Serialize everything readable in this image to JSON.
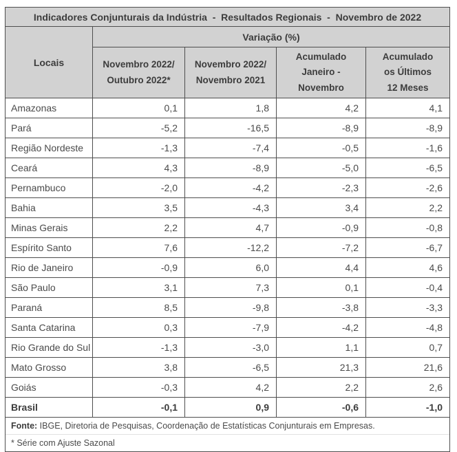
{
  "title": "Indicadores Conjunturais da Indústria  -  Resultados Regionais  -  Novembro de 2022",
  "table": {
    "locais_header": "Locais",
    "group_header": "Variação (%)",
    "columns": [
      [
        "Novembro 2022/",
        "Outubro 2022*"
      ],
      [
        "Novembro 2022/",
        "Novembro 2021"
      ],
      [
        "Acumulado",
        "Janeiro -",
        "Novembro"
      ],
      [
        "Acumulado",
        "os Últimos",
        "12 Meses"
      ]
    ],
    "rows": [
      {
        "local": "Amazonas",
        "values": [
          "0,1",
          "1,8",
          "4,2",
          "4,1"
        ],
        "bold": false
      },
      {
        "local": "Pará",
        "values": [
          "-5,2",
          "-16,5",
          "-8,9",
          "-8,9"
        ],
        "bold": false
      },
      {
        "local": "Região Nordeste",
        "values": [
          "-1,3",
          "-7,4",
          "-0,5",
          "-1,6"
        ],
        "bold": false
      },
      {
        "local": "Ceará",
        "values": [
          "4,3",
          "-8,9",
          "-5,0",
          "-6,5"
        ],
        "bold": false
      },
      {
        "local": "Pernambuco",
        "values": [
          "-2,0",
          "-4,2",
          "-2,3",
          "-2,6"
        ],
        "bold": false
      },
      {
        "local": "Bahia",
        "values": [
          "3,5",
          "-4,3",
          "3,4",
          "2,2"
        ],
        "bold": false
      },
      {
        "local": "Minas Gerais",
        "values": [
          "2,2",
          "4,7",
          "-0,9",
          "-0,8"
        ],
        "bold": false
      },
      {
        "local": "Espírito Santo",
        "values": [
          "7,6",
          "-12,2",
          "-7,2",
          "-6,7"
        ],
        "bold": false
      },
      {
        "local": "Rio de Janeiro",
        "values": [
          "-0,9",
          "6,0",
          "4,4",
          "4,6"
        ],
        "bold": false
      },
      {
        "local": "São Paulo",
        "values": [
          "3,1",
          "7,3",
          "0,1",
          "-0,4"
        ],
        "bold": false
      },
      {
        "local": "Paraná",
        "values": [
          "8,5",
          "-9,8",
          "-3,8",
          "-3,3"
        ],
        "bold": false
      },
      {
        "local": "Santa Catarina",
        "values": [
          "0,3",
          "-7,9",
          "-4,2",
          "-4,8"
        ],
        "bold": false
      },
      {
        "local": "Rio Grande do Sul",
        "values": [
          "-1,3",
          "-3,0",
          "1,1",
          "0,7"
        ],
        "bold": false
      },
      {
        "local": "Mato Grosso",
        "values": [
          "3,8",
          "-6,5",
          "21,3",
          "21,6"
        ],
        "bold": false
      },
      {
        "local": "Goiás",
        "values": [
          "-0,3",
          "4,2",
          "2,2",
          "2,6"
        ],
        "bold": false
      },
      {
        "local": "Brasil",
        "values": [
          "-0,1",
          "0,9",
          "-0,6",
          "-1,0"
        ],
        "bold": true
      }
    ]
  },
  "footer": {
    "fonte_label": "Fonte:",
    "fonte_text": " IBGE, Diretoria de Pesquisas, Coordenação de Estatísticas Conjunturais em Empresas.",
    "note": "* Série com Ajuste Sazonal"
  },
  "colors": {
    "header_background": "#d2d2d2",
    "border": "#4e4e4e",
    "header_text": "#3c3c3c",
    "body_text": "#4a4a4a",
    "row_background": "#ffffff"
  },
  "chart_data": {
    "type": "table",
    "title": "Indicadores Conjunturais da Indústria - Resultados Regionais - Novembro de 2022",
    "group_header": "Variação (%)",
    "categories": [
      "Amazonas",
      "Pará",
      "Região Nordeste",
      "Ceará",
      "Pernambuco",
      "Bahia",
      "Minas Gerais",
      "Espírito Santo",
      "Rio de Janeiro",
      "São Paulo",
      "Paraná",
      "Santa Catarina",
      "Rio Grande do Sul",
      "Mato Grosso",
      "Goiás",
      "Brasil"
    ],
    "series": [
      {
        "name": "Novembro 2022/Outubro 2022*",
        "values": [
          0.1,
          -5.2,
          -1.3,
          4.3,
          -2.0,
          3.5,
          2.2,
          7.6,
          -0.9,
          3.1,
          8.5,
          0.3,
          -1.3,
          3.8,
          -0.3,
          -0.1
        ]
      },
      {
        "name": "Novembro 2022/Novembro 2021",
        "values": [
          1.8,
          -16.5,
          -7.4,
          -8.9,
          -4.2,
          -4.3,
          4.7,
          -12.2,
          6.0,
          7.3,
          -9.8,
          -7.9,
          -3.0,
          -6.5,
          4.2,
          0.9
        ]
      },
      {
        "name": "Acumulado Janeiro - Novembro",
        "values": [
          4.2,
          -8.9,
          -0.5,
          -5.0,
          -2.3,
          3.4,
          -0.9,
          -7.2,
          4.4,
          0.1,
          -3.8,
          -4.2,
          1.1,
          21.3,
          2.2,
          -0.6
        ]
      },
      {
        "name": "Acumulado os Últimos 12 Meses",
        "values": [
          4.1,
          -8.9,
          -1.6,
          -6.5,
          -2.6,
          2.2,
          -0.8,
          -6.7,
          4.6,
          -0.4,
          -3.3,
          -4.8,
          0.7,
          21.6,
          2.6,
          -1.0
        ]
      }
    ],
    "notes": [
      "Fonte: IBGE, Diretoria de Pesquisas, Coordenação de Estatísticas Conjunturais em Empresas.",
      "* Série com Ajuste Sazonal"
    ]
  }
}
